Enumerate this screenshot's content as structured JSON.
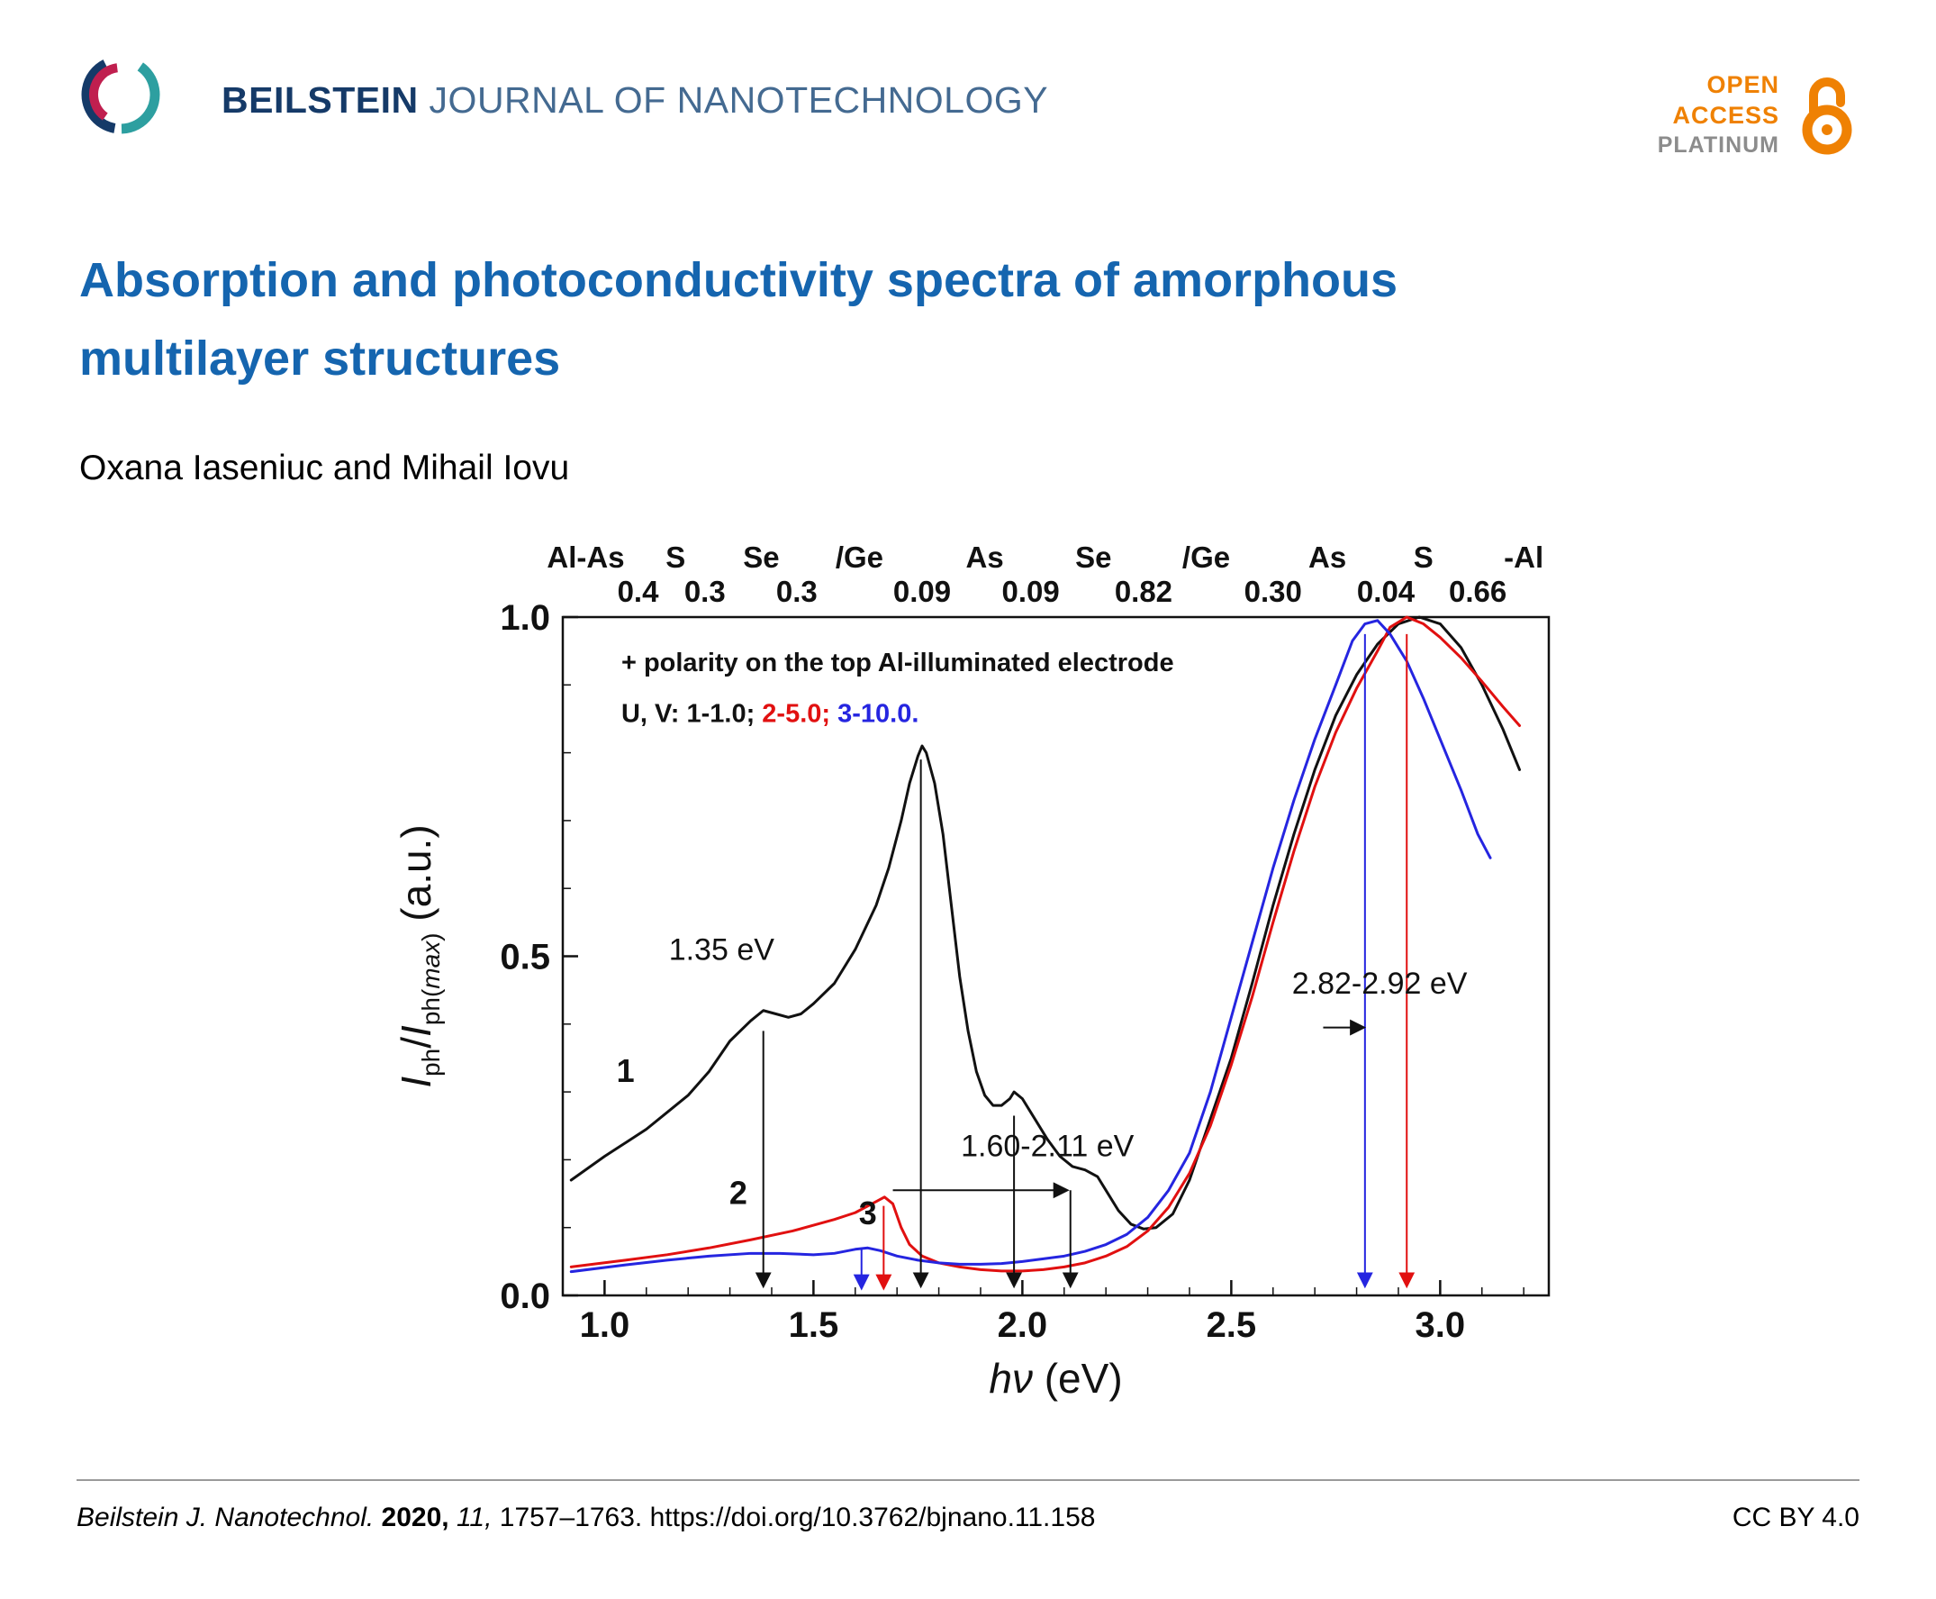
{
  "header": {
    "journal_bold": "BEILSTEIN",
    "journal_rest": "JOURNAL OF NANOTECHNOLOGY",
    "open_access": {
      "line1": "OPEN",
      "line2": "ACCESS",
      "line3": "PLATINUM"
    },
    "brand_colors": {
      "navy": "#153a68",
      "teal": "#2d9fa0",
      "crimson": "#c01f4f",
      "orange": "#ef8103"
    }
  },
  "article": {
    "title_line1": "Absorption and photoconductivity spectra of amorphous",
    "title_line2": "multilayer structures",
    "title_color": "#1565af",
    "authors": "Oxana Iaseniuc and Mihail Iovu"
  },
  "footer": {
    "citation_parts": [
      {
        "t": "Beilstein J. Nanotechnol. ",
        "style": "i"
      },
      {
        "t": "2020, ",
        "style": "b"
      },
      {
        "t": "11, ",
        "style": "i"
      },
      {
        "t": "1757–1763. ",
        "style": "n"
      }
    ],
    "doi": "https://doi.org/10.3762/bjnano.11.158",
    "license": "CC BY 4.0"
  },
  "chart_data": {
    "type": "line",
    "xlim": [
      0.9,
      3.26
    ],
    "ylim": [
      0.0,
      1.0
    ],
    "xticks": [
      {
        "v": 1.0,
        "label": "1.0"
      },
      {
        "v": 1.5,
        "label": "1.5"
      },
      {
        "v": 2.0,
        "label": "2.0"
      },
      {
        "v": 2.5,
        "label": "2.5"
      },
      {
        "v": 3.0,
        "label": "3.0"
      }
    ],
    "yticks": [
      {
        "v": 0.0,
        "label": "0.0"
      },
      {
        "v": 0.5,
        "label": "0.5"
      },
      {
        "v": 1.0,
        "label": "1.0"
      }
    ],
    "xlabel_parts": [
      {
        "t": "h",
        "style": "i"
      },
      {
        "t": "ν",
        "style": "i"
      },
      {
        "t": " (eV)",
        "style": "n"
      }
    ],
    "ylabel_parts": [
      {
        "t": "I",
        "style": "i"
      },
      {
        "t": "ph",
        "style": "sub"
      },
      {
        "t": "/",
        "style": "n"
      },
      {
        "t": "I",
        "style": "i"
      },
      {
        "t": "ph(",
        "style": "sub"
      },
      {
        "t": "max",
        "style": "subi"
      },
      {
        "t": ")",
        "style": "sub"
      },
      {
        "t": " (a.u.)",
        "style": "n"
      }
    ],
    "top_axis": {
      "labels": [
        {
          "t": "Al-As",
          "x": 0.955
        },
        {
          "t": "S",
          "x": 1.17
        },
        {
          "t": "Se",
          "x": 1.375
        },
        {
          "t": "/Ge",
          "x": 1.61
        },
        {
          "t": "As",
          "x": 1.91
        },
        {
          "t": "Se",
          "x": 2.17
        },
        {
          "t": "/Ge",
          "x": 2.44
        },
        {
          "t": "As",
          "x": 2.73
        },
        {
          "t": "S",
          "x": 2.96
        },
        {
          "t": "-Al",
          "x": 3.2
        }
      ],
      "numbers": [
        {
          "t": "0.4",
          "x": 1.08
        },
        {
          "t": "0.3",
          "x": 1.24
        },
        {
          "t": "0.3",
          "x": 1.46
        },
        {
          "t": "0.09",
          "x": 1.76
        },
        {
          "t": "0.09",
          "x": 2.02
        },
        {
          "t": "0.82",
          "x": 2.29
        },
        {
          "t": "0.30",
          "x": 2.6
        },
        {
          "t": "0.04",
          "x": 2.87
        },
        {
          "t": "0.66",
          "x": 3.09
        }
      ]
    },
    "series": [
      {
        "name": "1",
        "color": "#111111",
        "points": [
          [
            0.92,
            0.17
          ],
          [
            1.0,
            0.205
          ],
          [
            1.05,
            0.225
          ],
          [
            1.1,
            0.245
          ],
          [
            1.15,
            0.27
          ],
          [
            1.2,
            0.295
          ],
          [
            1.25,
            0.33
          ],
          [
            1.3,
            0.375
          ],
          [
            1.35,
            0.405
          ],
          [
            1.38,
            0.42
          ],
          [
            1.41,
            0.415
          ],
          [
            1.44,
            0.41
          ],
          [
            1.47,
            0.415
          ],
          [
            1.5,
            0.43
          ],
          [
            1.55,
            0.46
          ],
          [
            1.6,
            0.51
          ],
          [
            1.65,
            0.575
          ],
          [
            1.68,
            0.63
          ],
          [
            1.71,
            0.7
          ],
          [
            1.73,
            0.755
          ],
          [
            1.75,
            0.795
          ],
          [
            1.76,
            0.81
          ],
          [
            1.77,
            0.8
          ],
          [
            1.79,
            0.755
          ],
          [
            1.81,
            0.68
          ],
          [
            1.83,
            0.575
          ],
          [
            1.85,
            0.47
          ],
          [
            1.87,
            0.39
          ],
          [
            1.89,
            0.33
          ],
          [
            1.91,
            0.295
          ],
          [
            1.93,
            0.28
          ],
          [
            1.95,
            0.28
          ],
          [
            1.97,
            0.29
          ],
          [
            1.98,
            0.3
          ],
          [
            2.0,
            0.29
          ],
          [
            2.03,
            0.26
          ],
          [
            2.06,
            0.23
          ],
          [
            2.09,
            0.205
          ],
          [
            2.12,
            0.19
          ],
          [
            2.15,
            0.185
          ],
          [
            2.18,
            0.175
          ],
          [
            2.2,
            0.155
          ],
          [
            2.23,
            0.125
          ],
          [
            2.26,
            0.105
          ],
          [
            2.29,
            0.098
          ],
          [
            2.32,
            0.1
          ],
          [
            2.36,
            0.12
          ],
          [
            2.4,
            0.17
          ],
          [
            2.45,
            0.26
          ],
          [
            2.5,
            0.35
          ],
          [
            2.55,
            0.46
          ],
          [
            2.6,
            0.575
          ],
          [
            2.65,
            0.68
          ],
          [
            2.7,
            0.775
          ],
          [
            2.75,
            0.855
          ],
          [
            2.8,
            0.915
          ],
          [
            2.85,
            0.96
          ],
          [
            2.9,
            0.99
          ],
          [
            2.95,
            1.0
          ],
          [
            3.0,
            0.99
          ],
          [
            3.05,
            0.955
          ],
          [
            3.1,
            0.9
          ],
          [
            3.15,
            0.835
          ],
          [
            3.19,
            0.775
          ]
        ]
      },
      {
        "name": "2",
        "color": "#e11010",
        "points": [
          [
            0.92,
            0.042
          ],
          [
            1.05,
            0.052
          ],
          [
            1.15,
            0.06
          ],
          [
            1.25,
            0.07
          ],
          [
            1.35,
            0.082
          ],
          [
            1.45,
            0.095
          ],
          [
            1.55,
            0.112
          ],
          [
            1.6,
            0.122
          ],
          [
            1.64,
            0.135
          ],
          [
            1.67,
            0.145
          ],
          [
            1.69,
            0.135
          ],
          [
            1.71,
            0.1
          ],
          [
            1.73,
            0.075
          ],
          [
            1.76,
            0.058
          ],
          [
            1.8,
            0.048
          ],
          [
            1.85,
            0.042
          ],
          [
            1.9,
            0.038
          ],
          [
            1.95,
            0.036
          ],
          [
            2.0,
            0.036
          ],
          [
            2.05,
            0.038
          ],
          [
            2.1,
            0.042
          ],
          [
            2.15,
            0.048
          ],
          [
            2.2,
            0.058
          ],
          [
            2.25,
            0.072
          ],
          [
            2.3,
            0.095
          ],
          [
            2.35,
            0.13
          ],
          [
            2.4,
            0.18
          ],
          [
            2.45,
            0.25
          ],
          [
            2.5,
            0.34
          ],
          [
            2.55,
            0.44
          ],
          [
            2.6,
            0.55
          ],
          [
            2.65,
            0.655
          ],
          [
            2.7,
            0.75
          ],
          [
            2.75,
            0.83
          ],
          [
            2.8,
            0.895
          ],
          [
            2.85,
            0.95
          ],
          [
            2.88,
            0.985
          ],
          [
            2.92,
            1.0
          ],
          [
            2.96,
            0.99
          ],
          [
            3.0,
            0.97
          ],
          [
            3.05,
            0.94
          ],
          [
            3.1,
            0.905
          ],
          [
            3.15,
            0.868
          ],
          [
            3.19,
            0.84
          ]
        ]
      },
      {
        "name": "3",
        "color": "#2525e0",
        "points": [
          [
            0.92,
            0.035
          ],
          [
            1.05,
            0.045
          ],
          [
            1.15,
            0.052
          ],
          [
            1.25,
            0.058
          ],
          [
            1.35,
            0.062
          ],
          [
            1.42,
            0.062
          ],
          [
            1.5,
            0.06
          ],
          [
            1.55,
            0.062
          ],
          [
            1.6,
            0.068
          ],
          [
            1.63,
            0.07
          ],
          [
            1.66,
            0.066
          ],
          [
            1.7,
            0.058
          ],
          [
            1.75,
            0.052
          ],
          [
            1.8,
            0.048
          ],
          [
            1.85,
            0.046
          ],
          [
            1.9,
            0.046
          ],
          [
            1.95,
            0.047
          ],
          [
            2.0,
            0.05
          ],
          [
            2.05,
            0.054
          ],
          [
            2.1,
            0.058
          ],
          [
            2.15,
            0.065
          ],
          [
            2.2,
            0.075
          ],
          [
            2.25,
            0.09
          ],
          [
            2.3,
            0.115
          ],
          [
            2.35,
            0.155
          ],
          [
            2.4,
            0.21
          ],
          [
            2.45,
            0.3
          ],
          [
            2.5,
            0.41
          ],
          [
            2.55,
            0.52
          ],
          [
            2.6,
            0.63
          ],
          [
            2.65,
            0.73
          ],
          [
            2.7,
            0.82
          ],
          [
            2.75,
            0.9
          ],
          [
            2.79,
            0.965
          ],
          [
            2.82,
            0.99
          ],
          [
            2.85,
            0.995
          ],
          [
            2.88,
            0.975
          ],
          [
            2.92,
            0.935
          ],
          [
            2.96,
            0.88
          ],
          [
            3.0,
            0.82
          ],
          [
            3.05,
            0.745
          ],
          [
            3.09,
            0.68
          ],
          [
            3.12,
            0.645
          ]
        ]
      }
    ],
    "arrows": [
      {
        "x1": 1.38,
        "y1": 0.39,
        "x2": 1.38,
        "y2": 0.015,
        "color": "#111111"
      },
      {
        "x1": 1.757,
        "y1": 0.79,
        "x2": 1.757,
        "y2": 0.015,
        "color": "#111111"
      },
      {
        "x1": 1.98,
        "y1": 0.265,
        "x2": 1.98,
        "y2": 0.015,
        "color": "#111111"
      },
      {
        "x1": 2.115,
        "y1": 0.155,
        "x2": 2.115,
        "y2": 0.015,
        "color": "#111111"
      },
      {
        "x1": 1.69,
        "y1": 0.155,
        "x2": 2.105,
        "y2": 0.155,
        "color": "#111111"
      },
      {
        "x1": 1.615,
        "y1": 0.068,
        "x2": 1.615,
        "y2": 0.012,
        "color": "#2525e0"
      },
      {
        "x1": 1.668,
        "y1": 0.132,
        "x2": 1.668,
        "y2": 0.012,
        "color": "#e11010"
      },
      {
        "x1": 2.82,
        "y1": 0.975,
        "x2": 2.82,
        "y2": 0.015,
        "color": "#2525e0"
      },
      {
        "x1": 2.92,
        "y1": 0.975,
        "x2": 2.92,
        "y2": 0.015,
        "color": "#e11010"
      },
      {
        "x1": 2.72,
        "y1": 0.395,
        "x2": 2.815,
        "y2": 0.395,
        "color": "#111111"
      }
    ],
    "texts": [
      {
        "t": "+ polarity on the top Al-illuminated electrode",
        "x": 1.04,
        "y": 0.92,
        "anchor": "start",
        "size": 29,
        "weight": "bold"
      },
      {
        "parts": [
          {
            "t": "U, V: 1-1.0; ",
            "color": "#111111"
          },
          {
            "t": "2-5.0;",
            "color": "#e11010"
          },
          {
            "t": " 3-10.0.",
            "color": "#2525e0"
          }
        ],
        "x": 1.04,
        "y": 0.845,
        "anchor": "start",
        "size": 29,
        "weight": "bold"
      },
      {
        "t": "1.35 eV",
        "x": 1.28,
        "y": 0.495,
        "anchor": "middle",
        "size": 34
      },
      {
        "t": "1.60-2.11 eV",
        "x": 2.06,
        "y": 0.205,
        "anchor": "middle",
        "size": 34
      },
      {
        "t": "2.82-2.92 eV",
        "x": 2.855,
        "y": 0.445,
        "anchor": "middle",
        "size": 34
      },
      {
        "t": "1",
        "x": 1.05,
        "y": 0.315,
        "anchor": "middle",
        "size": 36,
        "weight": "bold",
        "color": "#111111"
      },
      {
        "t": "2",
        "x": 1.32,
        "y": 0.135,
        "anchor": "middle",
        "size": 36,
        "weight": "bold",
        "color": "#e11010"
      },
      {
        "t": "3",
        "x": 1.63,
        "y": 0.105,
        "anchor": "middle",
        "size": 36,
        "weight": "bold",
        "color": "#2525e0"
      }
    ]
  }
}
